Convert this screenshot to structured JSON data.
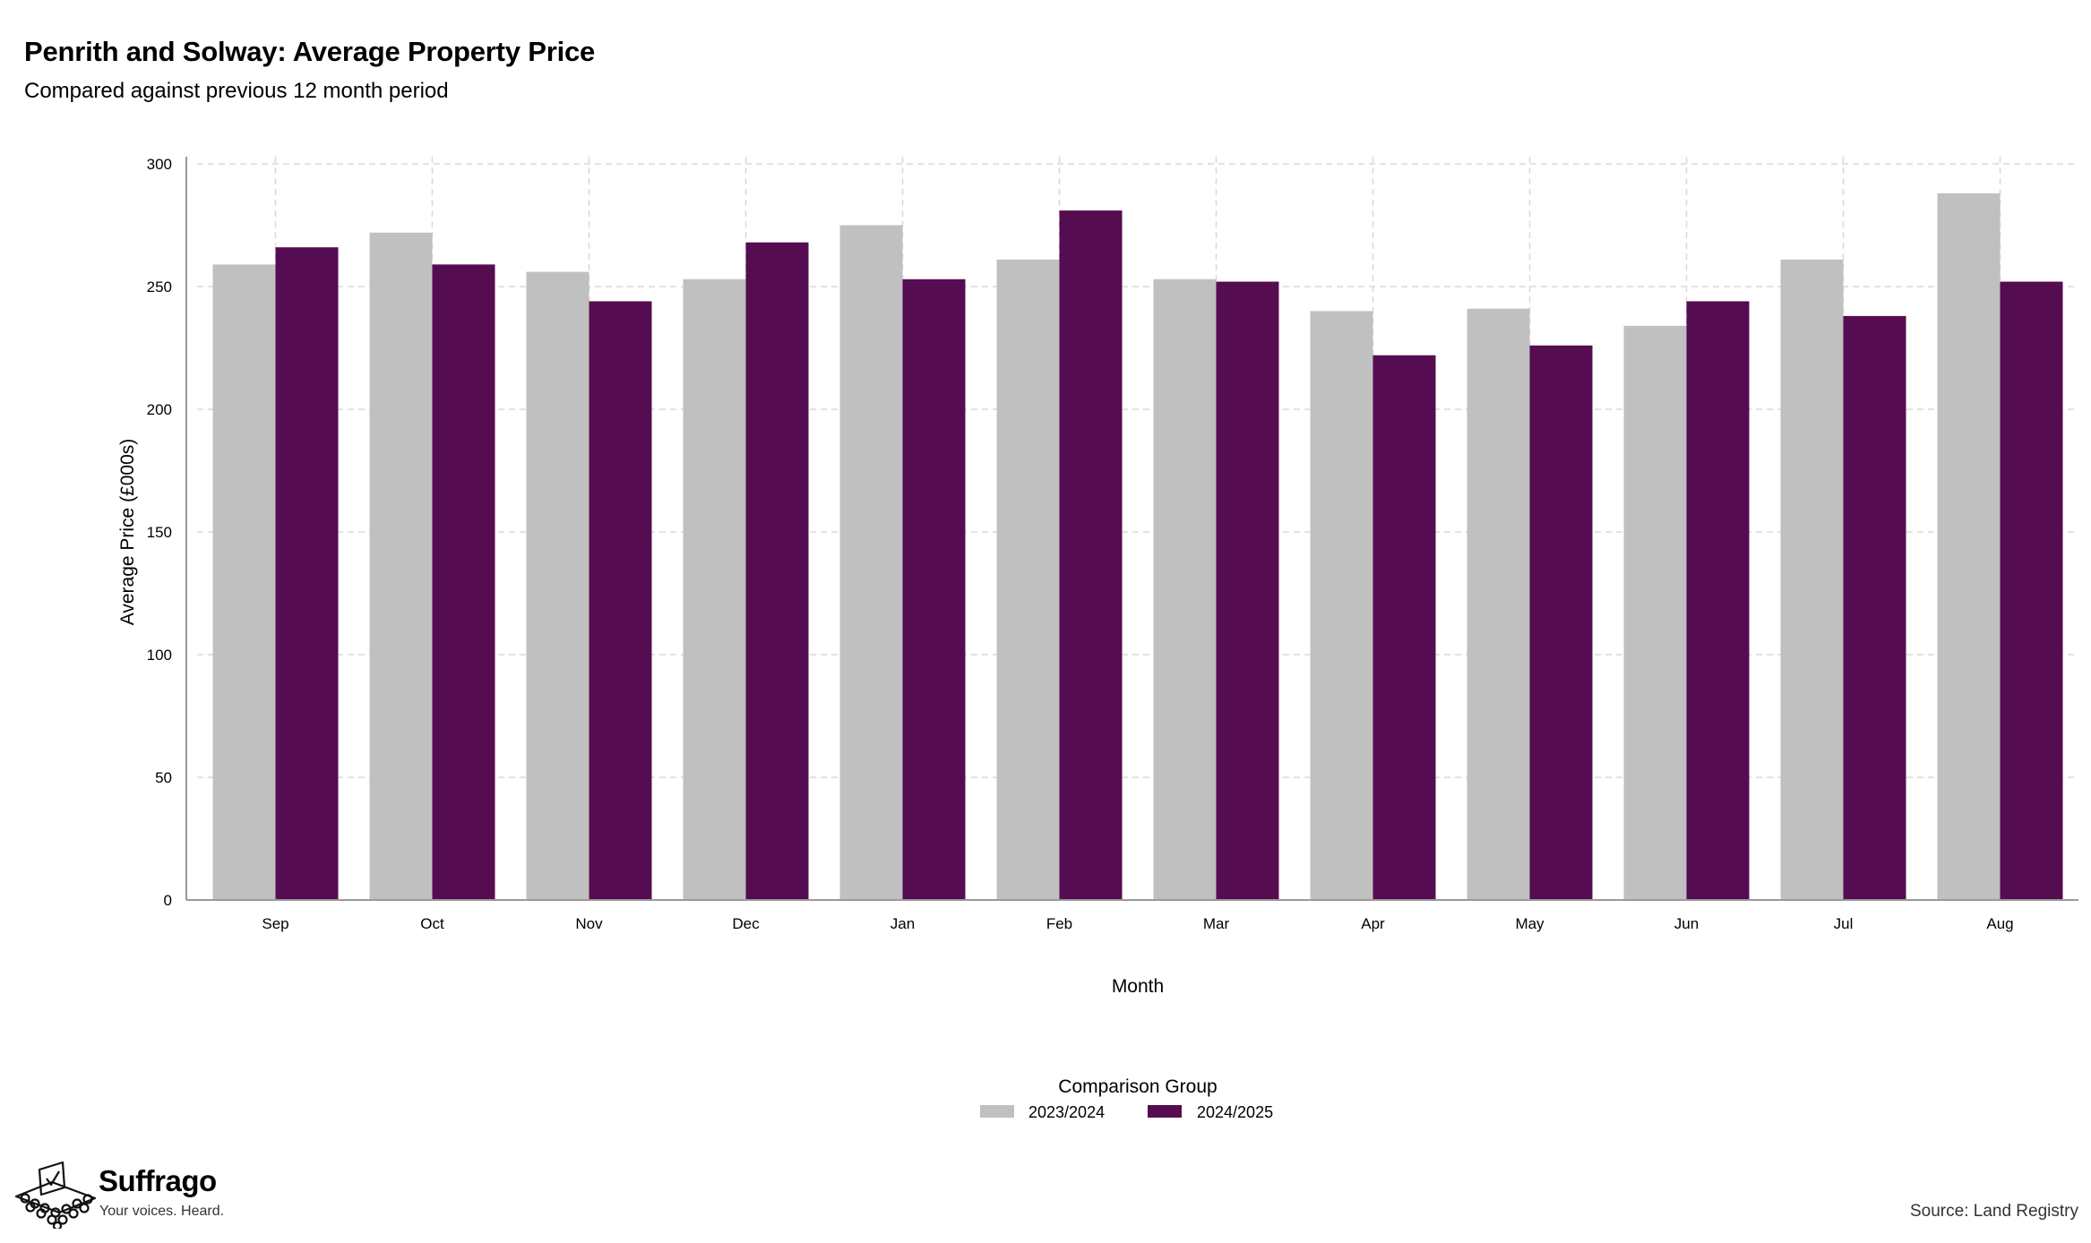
{
  "header": {
    "title": "Penrith and Solway: Average Property Price",
    "subtitle": "Compared against previous 12 month period"
  },
  "footer": {
    "brand_name": "Suffrago",
    "brand_tagline": "Your voices. Heard.",
    "source": "Source: Land Registry"
  },
  "colors": {
    "series_2023_2024": "#c0c0c0",
    "series_2024_2025": "#560c50",
    "grid": "#d9d9d9",
    "axis": "#9a9a9a"
  },
  "chart_data": {
    "type": "bar",
    "title": "Penrith and Solway: Average Property Price",
    "subtitle": "Compared against previous 12 month period",
    "xlabel": "Month",
    "ylabel": "Average Price (£000s)",
    "ylim": [
      0,
      300
    ],
    "yticks": [
      0,
      50,
      100,
      150,
      200,
      250,
      300
    ],
    "grid": true,
    "legend_title": "Comparison Group",
    "legend_position": "bottom",
    "categories": [
      "Sep",
      "Oct",
      "Nov",
      "Dec",
      "Jan",
      "Feb",
      "Mar",
      "Apr",
      "May",
      "Jun",
      "Jul",
      "Aug"
    ],
    "series": [
      {
        "name": "2023/2024",
        "color": "#c0c0c0",
        "values": [
          259,
          272,
          256,
          253,
          275,
          261,
          253,
          240,
          241,
          234,
          261,
          288
        ]
      },
      {
        "name": "2024/2025",
        "color": "#560c50",
        "values": [
          266,
          259,
          244,
          268,
          253,
          281,
          252,
          222,
          226,
          244,
          238,
          252
        ]
      }
    ]
  }
}
